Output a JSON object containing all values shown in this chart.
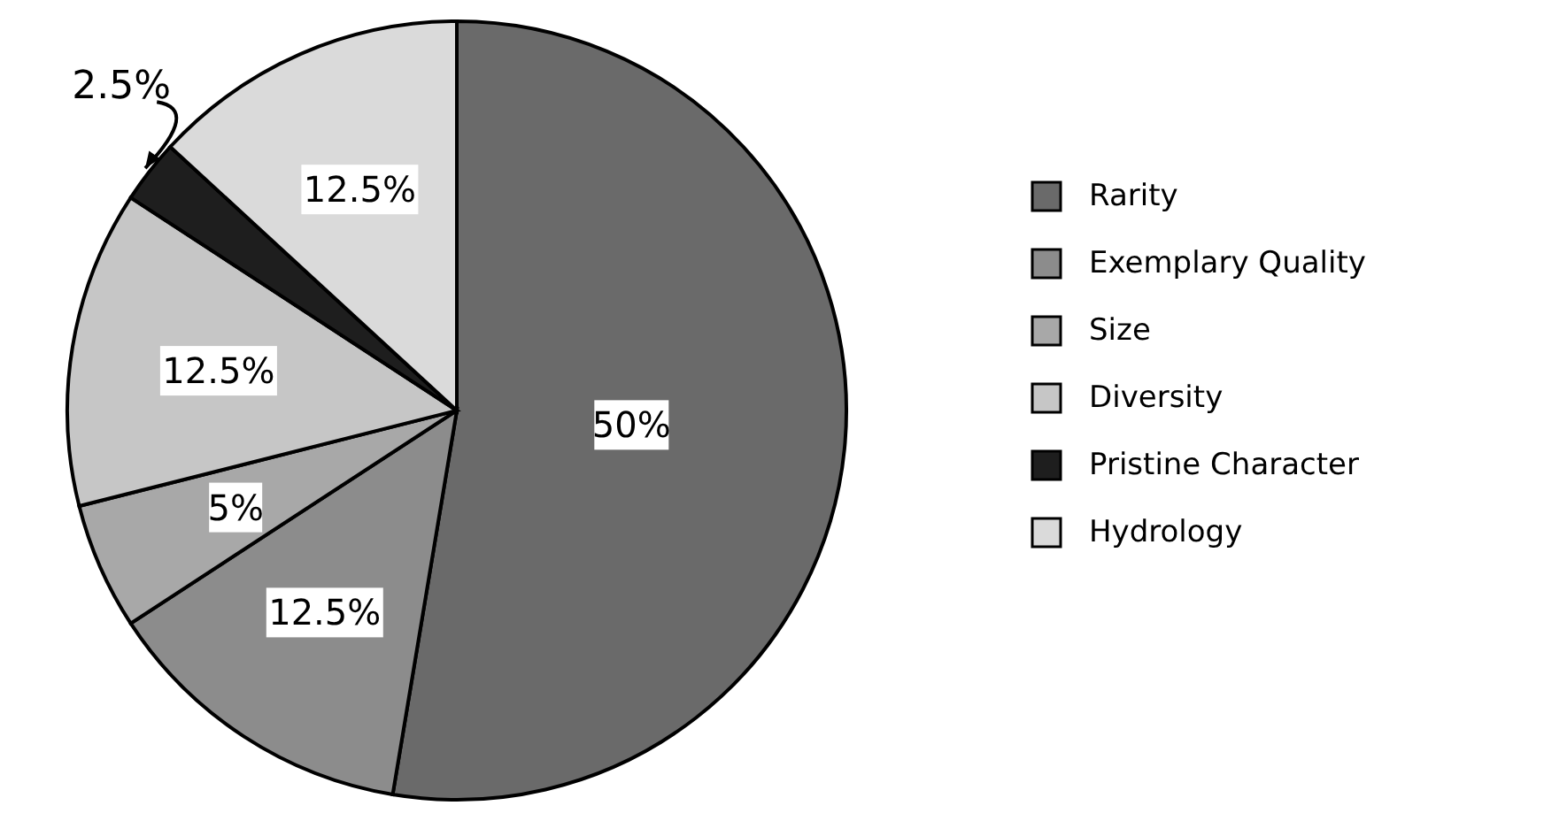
{
  "chart_data": {
    "type": "pie",
    "categories": [
      "Rarity",
      "Exemplary Quality",
      "Size",
      "Diversity",
      "Pristine Character",
      "Hydrology"
    ],
    "values": [
      50,
      12.5,
      5,
      12.5,
      2.5,
      12.5
    ],
    "value_labels": [
      "50%",
      "12.5%",
      "5%",
      "12.5%",
      "2.5%",
      "12.5%"
    ],
    "colors": [
      "#6a6a6a",
      "#8c8c8c",
      "#a8a8a8",
      "#c6c6c6",
      "#1e1e1e",
      "#dadada"
    ],
    "legend": "right"
  }
}
